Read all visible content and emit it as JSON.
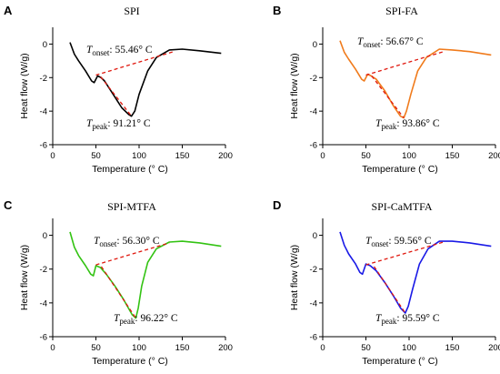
{
  "chart_data": [
    {
      "type": "line",
      "panel": "A",
      "title": "SPI",
      "xlabel": "Temperature (° C)",
      "ylabel": "Heat flow (W/g)",
      "xlim": [
        0,
        200
      ],
      "ylim": [
        -6,
        1
      ],
      "xticks": [
        0,
        50,
        100,
        150,
        200
      ],
      "yticks": [
        0,
        -2,
        -4,
        -6
      ],
      "grid": false,
      "legend": "none",
      "color": "#000000",
      "series": [
        {
          "x": [
            20,
            25,
            30,
            38,
            45,
            48,
            52,
            56,
            60,
            70,
            80,
            88,
            91.21,
            95,
            100,
            110,
            120,
            135,
            150,
            170,
            195
          ],
          "y": [
            0.1,
            -0.6,
            -1.0,
            -1.6,
            -2.2,
            -2.3,
            -1.9,
            -2.0,
            -2.2,
            -3.0,
            -3.8,
            -4.2,
            -4.3,
            -4.0,
            -3.0,
            -1.6,
            -0.8,
            -0.35,
            -0.3,
            -0.4,
            -0.55
          ]
        }
      ],
      "onset_value": "55.46° C",
      "peak_value": "91.21° C",
      "baseline": {
        "x": [
          50,
          140
        ],
        "y": [
          -1.85,
          -0.45
        ]
      },
      "drop_line": {
        "x": [
          55.5,
          91.21
        ],
        "y": [
          -1.95,
          -4.3
        ]
      }
    },
    {
      "type": "line",
      "panel": "B",
      "title": "SPI-FA",
      "xlabel": "Temperature (° C)",
      "ylabel": "Heat flow (W/g)",
      "xlim": [
        0,
        200
      ],
      "ylim": [
        -6,
        1
      ],
      "xticks": [
        0,
        50,
        100,
        150,
        200
      ],
      "yticks": [
        0,
        -2,
        -4,
        -6
      ],
      "grid": false,
      "legend": "none",
      "color": "#f07b1c",
      "series": [
        {
          "x": [
            20,
            25,
            30,
            38,
            45,
            48,
            52,
            56,
            62,
            72,
            82,
            90,
            93.86,
            97,
            102,
            110,
            120,
            135,
            150,
            170,
            195
          ],
          "y": [
            0.2,
            -0.5,
            -0.9,
            -1.5,
            -2.1,
            -2.2,
            -1.8,
            -1.9,
            -2.1,
            -2.8,
            -3.7,
            -4.3,
            -4.4,
            -4.0,
            -3.0,
            -1.6,
            -0.8,
            -0.3,
            -0.35,
            -0.45,
            -0.65
          ]
        }
      ],
      "onset_value": "56.67° C",
      "peak_value": "93.86° C",
      "baseline": {
        "x": [
          50,
          140
        ],
        "y": [
          -1.85,
          -0.45
        ]
      },
      "drop_line": {
        "x": [
          56.7,
          93.86
        ],
        "y": [
          -1.9,
          -4.4
        ]
      }
    },
    {
      "type": "line",
      "panel": "C",
      "title": "SPI-MTFA",
      "xlabel": "Temperature (° C)",
      "ylabel": "Heat flow (W/g)",
      "xlim": [
        0,
        200
      ],
      "ylim": [
        -6,
        1
      ],
      "xticks": [
        0,
        50,
        100,
        150,
        200
      ],
      "yticks": [
        0,
        -2,
        -4,
        -6
      ],
      "grid": false,
      "legend": "none",
      "color": "#33c313",
      "series": [
        {
          "x": [
            20,
            25,
            30,
            38,
            44,
            47,
            50,
            55,
            62,
            72,
            82,
            92,
            96.22,
            99,
            103,
            110,
            120,
            135,
            150,
            170,
            195
          ],
          "y": [
            0.2,
            -0.7,
            -1.2,
            -1.8,
            -2.3,
            -2.4,
            -1.8,
            -1.9,
            -2.3,
            -3.0,
            -3.8,
            -4.7,
            -4.9,
            -4.3,
            -3.0,
            -1.6,
            -0.8,
            -0.4,
            -0.35,
            -0.45,
            -0.65
          ]
        }
      ],
      "onset_value": "56.30° C",
      "peak_value": "96.22° C",
      "baseline": {
        "x": [
          50,
          135
        ],
        "y": [
          -1.75,
          -0.45
        ]
      },
      "drop_line": {
        "x": [
          56.3,
          96.22
        ],
        "y": [
          -1.85,
          -4.9
        ]
      }
    },
    {
      "type": "line",
      "panel": "D",
      "title": "SPI-CaMTFA",
      "xlabel": "Temperature (° C)",
      "ylabel": "Heat flow (W/g)",
      "xlim": [
        0,
        200
      ],
      "ylim": [
        -6,
        1
      ],
      "xticks": [
        0,
        50,
        100,
        150,
        200
      ],
      "yticks": [
        0,
        -2,
        -4,
        -6
      ],
      "grid": false,
      "legend": "none",
      "color": "#1a1ae6",
      "series": [
        {
          "x": [
            20,
            25,
            30,
            38,
            43,
            46,
            50,
            55,
            62,
            72,
            82,
            90,
            95.59,
            99,
            104,
            112,
            122,
            135,
            150,
            170,
            195
          ],
          "y": [
            0.2,
            -0.6,
            -1.1,
            -1.7,
            -2.2,
            -2.3,
            -1.7,
            -1.8,
            -2.1,
            -2.8,
            -3.6,
            -4.3,
            -4.6,
            -4.2,
            -3.2,
            -1.7,
            -0.8,
            -0.35,
            -0.35,
            -0.45,
            -0.65
          ]
        }
      ],
      "onset_value": "59.56° C",
      "peak_value": "95.59° C",
      "baseline": {
        "x": [
          50,
          140
        ],
        "y": [
          -1.75,
          -0.4
        ]
      },
      "drop_line": {
        "x": [
          59.5,
          95.59
        ],
        "y": [
          -1.85,
          -4.6
        ]
      }
    }
  ],
  "annotation_labels": {
    "onset_symbol": "T",
    "onset_sub": "onset",
    "peak_symbol": "T",
    "peak_sub": "peak",
    "separator": ": "
  }
}
